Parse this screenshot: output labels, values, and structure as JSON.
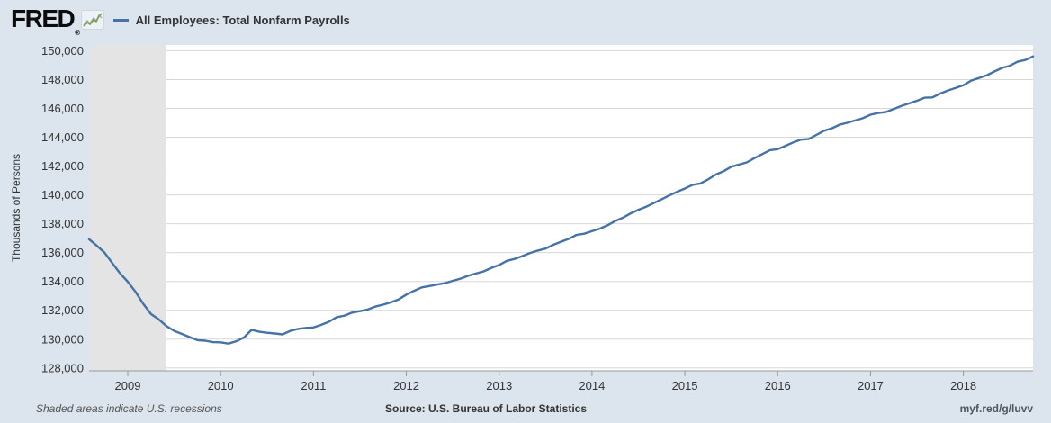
{
  "header": {
    "logo_text": "FRED",
    "registered_mark": "®",
    "series_title": "All Employees: Total Nonfarm Payrolls"
  },
  "footer": {
    "recession_note": "Shaded areas indicate U.S. recessions",
    "source": "Source: U.S. Bureau of Labor Statistics",
    "permalink": "myf.red/g/luvv"
  },
  "colors": {
    "page_background": "#dce4ee",
    "plot_background": "#ffffff",
    "recession_band": "#e4e4e4",
    "line": "#4572a7",
    "gridline": "#d8d8d8",
    "axis": "#999999",
    "axis_text": "#333333",
    "sparkline_green": "#7fa046"
  },
  "chart_data": {
    "type": "line",
    "title": "All Employees: Total Nonfarm Payrolls",
    "ylabel": "Thousands of Persons",
    "xlabel": "",
    "frequency": "monthly",
    "x_start": "2008-08",
    "x_end": "2018-10",
    "ylim": [
      127800,
      150400
    ],
    "y_ticks": [
      128000,
      130000,
      132000,
      134000,
      136000,
      138000,
      140000,
      142000,
      144000,
      146000,
      148000,
      150000
    ],
    "x_ticks": [
      2009,
      2010,
      2011,
      2012,
      2013,
      2014,
      2015,
      2016,
      2017,
      2018
    ],
    "grid": "horizontal",
    "legend_position": "top",
    "recession": {
      "start": "2008-08",
      "end": "2009-06",
      "start_index": 0,
      "end_index": 10
    },
    "series": [
      {
        "name": "All Employees: Total Nonfarm Payrolls",
        "color": "#4572a7",
        "values": [
          136930,
          136480,
          136000,
          135270,
          134560,
          133980,
          133280,
          132450,
          131740,
          131370,
          130900,
          130570,
          130360,
          130140,
          129930,
          129890,
          129790,
          129780,
          129690,
          129850,
          130110,
          130640,
          130510,
          130440,
          130390,
          130330,
          130570,
          130710,
          130780,
          130810,
          130990,
          131200,
          131520,
          131630,
          131840,
          131940,
          132050,
          132260,
          132390,
          132550,
          132750,
          133090,
          133350,
          133590,
          133680,
          133790,
          133880,
          134040,
          134190,
          134390,
          134550,
          134700,
          134940,
          135140,
          135430,
          135560,
          135760,
          135970,
          136140,
          136280,
          136540,
          136750,
          136950,
          137230,
          137310,
          137480,
          137660,
          137890,
          138190,
          138420,
          138720,
          138970,
          139180,
          139440,
          139700,
          139960,
          140220,
          140440,
          140700,
          140790,
          141070,
          141410,
          141640,
          141950,
          142100,
          142250,
          142550,
          142830,
          143100,
          143170,
          143400,
          143640,
          143830,
          143870,
          144160,
          144450,
          144620,
          144870,
          145000,
          145160,
          145320,
          145560,
          145680,
          145750,
          145960,
          146170,
          146350,
          146530,
          146740,
          146760,
          147030,
          147240,
          147420,
          147600,
          147930,
          148110,
          148290,
          148560,
          148810,
          148960,
          149240,
          149360,
          149610
        ]
      }
    ]
  }
}
